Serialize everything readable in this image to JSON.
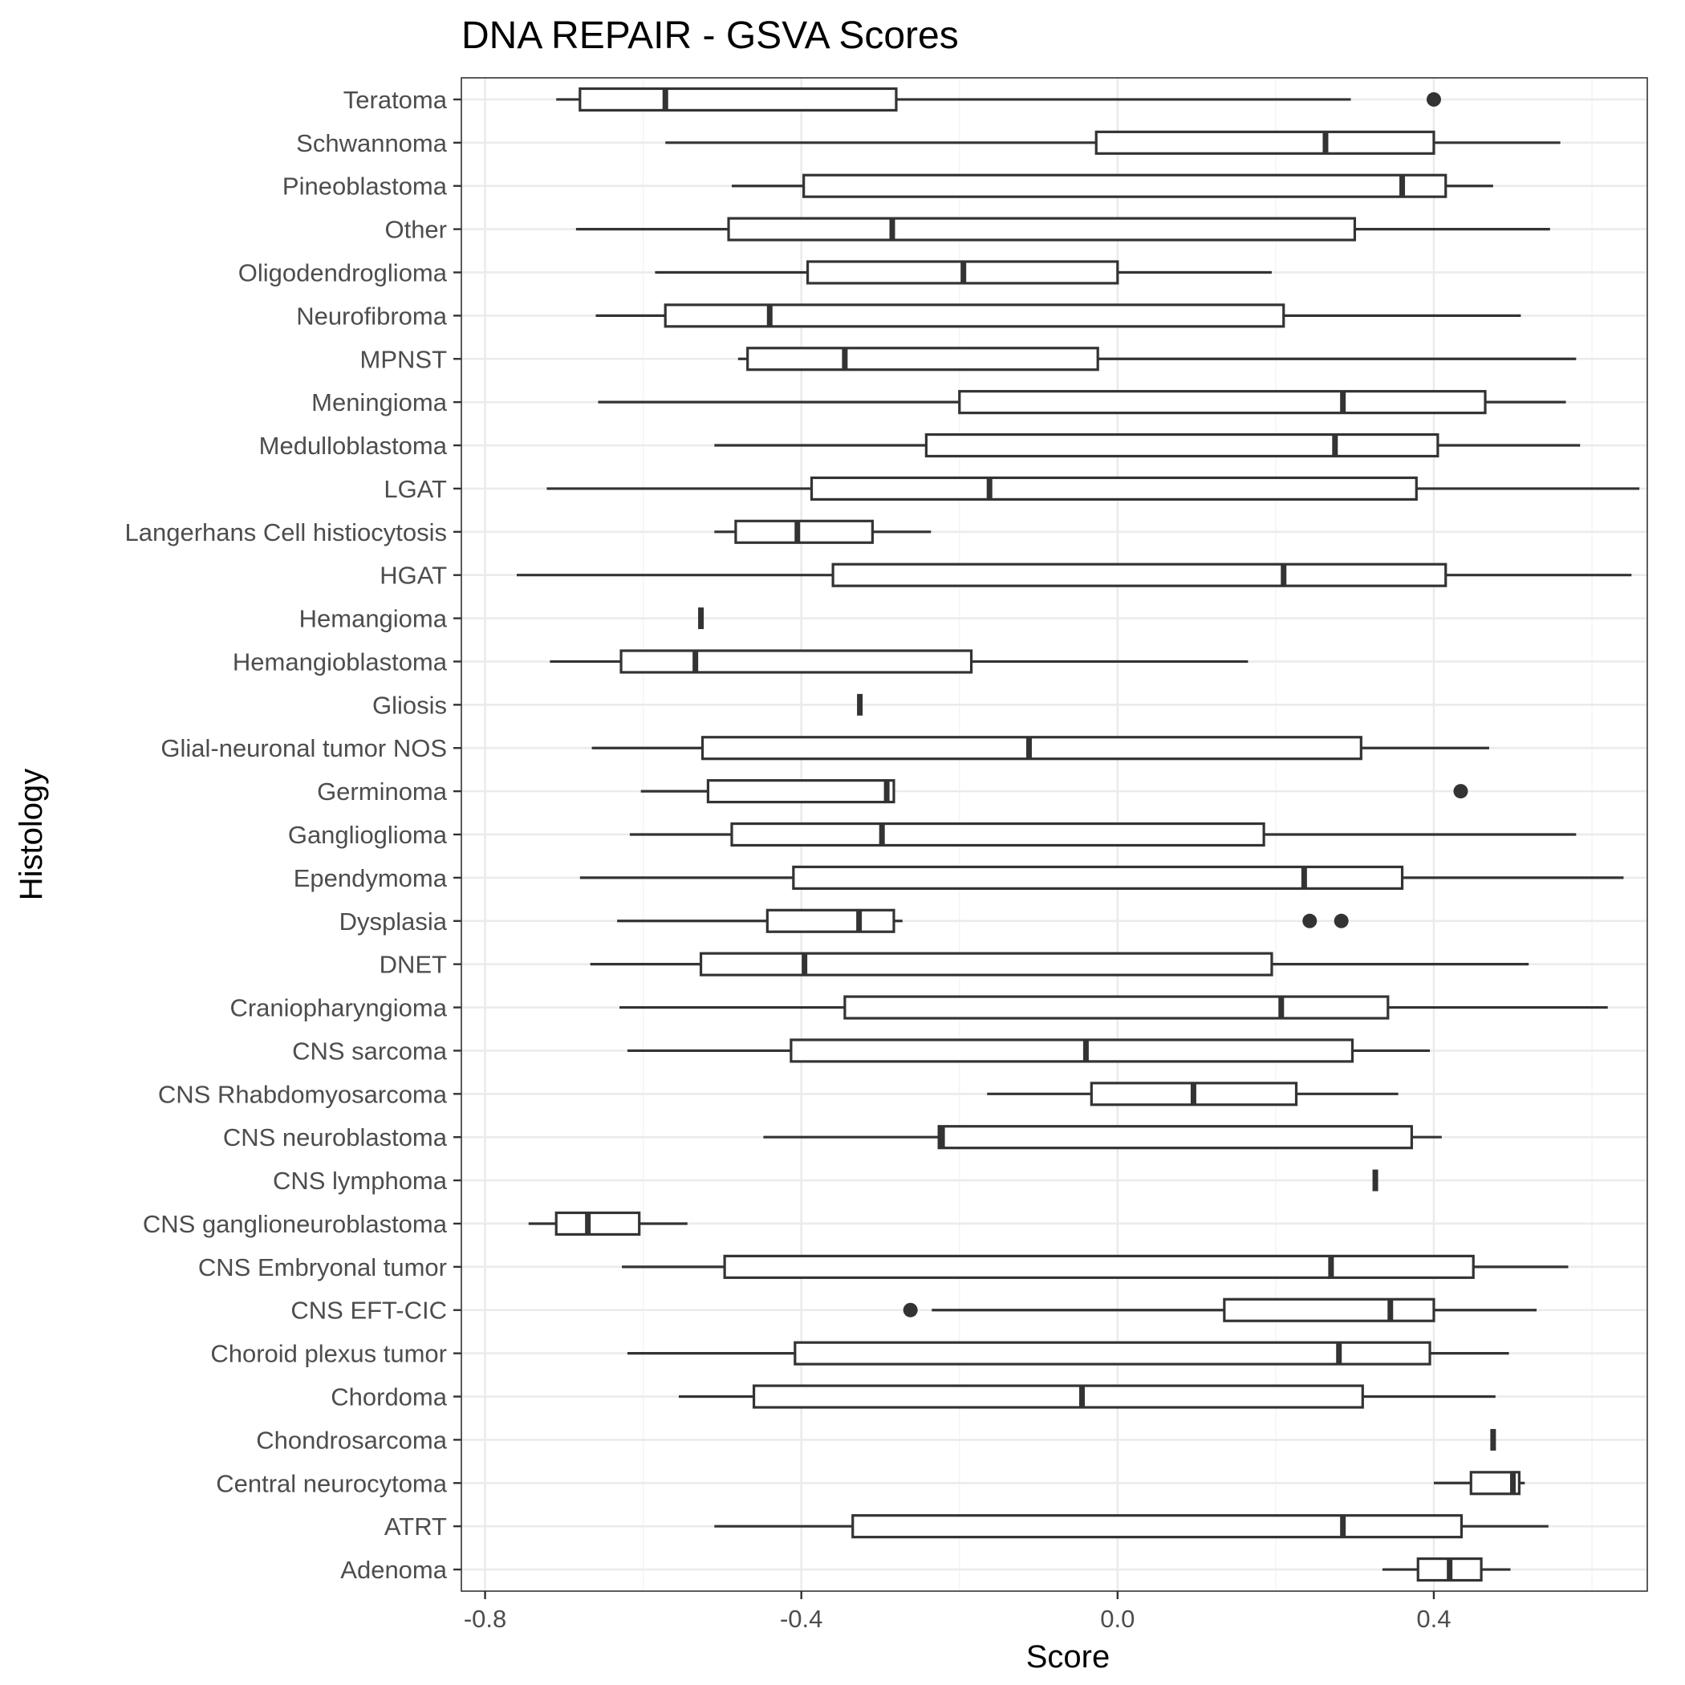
{
  "chart_data": {
    "type": "boxplot",
    "orientation": "horizontal",
    "title": "DNA REPAIR - GSVA Scores",
    "xlabel": "Score",
    "ylabel": "Histology",
    "xlim": [
      -0.83,
      0.67
    ],
    "xticks": [
      -0.8,
      -0.4,
      0.0,
      0.4
    ],
    "xtick_labels": [
      "-0.8",
      "-0.4",
      "0.0",
      "0.4"
    ],
    "grid": true,
    "legend": "none",
    "series": [
      {
        "name": "Teratoma",
        "min": -0.71,
        "q1": -0.68,
        "median": -0.572,
        "q3": -0.28,
        "max": 0.295,
        "outliers": [
          0.4
        ]
      },
      {
        "name": "Schwannoma",
        "min": -0.572,
        "q1": -0.027,
        "median": 0.263,
        "q3": 0.4,
        "max": 0.56,
        "outliers": []
      },
      {
        "name": "Pineoblastoma",
        "min": -0.488,
        "q1": -0.397,
        "median": 0.36,
        "q3": 0.415,
        "max": 0.475,
        "outliers": []
      },
      {
        "name": "Other",
        "min": -0.685,
        "q1": -0.492,
        "median": -0.285,
        "q3": 0.3,
        "max": 0.547,
        "outliers": []
      },
      {
        "name": "Oligodendroglioma",
        "min": -0.585,
        "q1": -0.392,
        "median": -0.195,
        "q3": 0.0,
        "max": 0.195,
        "outliers": []
      },
      {
        "name": "Neurofibroma",
        "min": -0.66,
        "q1": -0.572,
        "median": -0.44,
        "q3": 0.21,
        "max": 0.51,
        "outliers": []
      },
      {
        "name": "MPNST",
        "min": -0.48,
        "q1": -0.468,
        "median": -0.345,
        "q3": -0.025,
        "max": 0.58,
        "outliers": []
      },
      {
        "name": "Meningioma",
        "min": -0.657,
        "q1": -0.2,
        "median": 0.285,
        "q3": 0.465,
        "max": 0.567,
        "outliers": []
      },
      {
        "name": "Medulloblastoma",
        "min": -0.51,
        "q1": -0.242,
        "median": 0.275,
        "q3": 0.405,
        "max": 0.585,
        "outliers": []
      },
      {
        "name": "LGAT",
        "min": -0.722,
        "q1": -0.387,
        "median": -0.162,
        "q3": 0.378,
        "max": 0.66,
        "outliers": []
      },
      {
        "name": "Langerhans Cell histiocytosis",
        "min": -0.51,
        "q1": -0.483,
        "median": -0.405,
        "q3": -0.31,
        "max": -0.236,
        "outliers": []
      },
      {
        "name": "HGAT",
        "min": -0.76,
        "q1": -0.36,
        "median": 0.21,
        "q3": 0.415,
        "max": 0.65,
        "outliers": []
      },
      {
        "name": "Hemangioma",
        "min": -0.527,
        "q1": -0.527,
        "median": -0.527,
        "q3": -0.527,
        "max": -0.527,
        "outliers": []
      },
      {
        "name": "Hemangioblastoma",
        "min": -0.718,
        "q1": -0.628,
        "median": -0.534,
        "q3": -0.185,
        "max": 0.165,
        "outliers": []
      },
      {
        "name": "Gliosis",
        "min": -0.326,
        "q1": -0.326,
        "median": -0.326,
        "q3": -0.326,
        "max": -0.326,
        "outliers": []
      },
      {
        "name": "Glial-neuronal tumor NOS",
        "min": -0.665,
        "q1": -0.525,
        "median": -0.112,
        "q3": 0.308,
        "max": 0.47,
        "outliers": []
      },
      {
        "name": "Germinoma",
        "min": -0.603,
        "q1": -0.518,
        "median": -0.292,
        "q3": -0.283,
        "max": -0.283,
        "outliers": [
          0.434
        ]
      },
      {
        "name": "Ganglioglioma",
        "min": -0.617,
        "q1": -0.488,
        "median": -0.298,
        "q3": 0.185,
        "max": 0.58,
        "outliers": []
      },
      {
        "name": "Ependymoma",
        "min": -0.68,
        "q1": -0.41,
        "median": 0.236,
        "q3": 0.36,
        "max": 0.64,
        "outliers": []
      },
      {
        "name": "Dysplasia",
        "min": -0.633,
        "q1": -0.443,
        "median": -0.327,
        "q3": -0.283,
        "max": -0.272,
        "outliers": [
          0.243,
          0.283
        ]
      },
      {
        "name": "DNET",
        "min": -0.667,
        "q1": -0.527,
        "median": -0.396,
        "q3": 0.195,
        "max": 0.52,
        "outliers": []
      },
      {
        "name": "Craniopharyngioma",
        "min": -0.63,
        "q1": -0.345,
        "median": 0.207,
        "q3": 0.342,
        "max": 0.62,
        "outliers": []
      },
      {
        "name": "CNS sarcoma",
        "min": -0.62,
        "q1": -0.413,
        "median": -0.04,
        "q3": 0.297,
        "max": 0.395,
        "outliers": []
      },
      {
        "name": "CNS Rhabdomyosarcoma",
        "min": -0.165,
        "q1": -0.033,
        "median": 0.096,
        "q3": 0.226,
        "max": 0.355,
        "outliers": []
      },
      {
        "name": "CNS neuroblastoma",
        "min": -0.448,
        "q1": -0.226,
        "median": -0.222,
        "q3": 0.372,
        "max": 0.41,
        "outliers": []
      },
      {
        "name": "CNS lymphoma",
        "min": 0.326,
        "q1": 0.326,
        "median": 0.326,
        "q3": 0.326,
        "max": 0.326,
        "outliers": []
      },
      {
        "name": "CNS ganglioneuroblastoma",
        "min": -0.745,
        "q1": -0.71,
        "median": -0.67,
        "q3": -0.605,
        "max": -0.544,
        "outliers": []
      },
      {
        "name": "CNS Embryonal tumor",
        "min": -0.627,
        "q1": -0.497,
        "median": 0.27,
        "q3": 0.45,
        "max": 0.57,
        "outliers": []
      },
      {
        "name": "CNS EFT-CIC",
        "min": -0.235,
        "q1": 0.135,
        "median": 0.345,
        "q3": 0.4,
        "max": 0.53,
        "outliers": [
          -0.262
        ]
      },
      {
        "name": "Choroid plexus tumor",
        "min": -0.62,
        "q1": -0.408,
        "median": 0.28,
        "q3": 0.395,
        "max": 0.495,
        "outliers": []
      },
      {
        "name": "Chordoma",
        "min": -0.555,
        "q1": -0.46,
        "median": -0.045,
        "q3": 0.31,
        "max": 0.478,
        "outliers": []
      },
      {
        "name": "Chondrosarcoma",
        "min": 0.475,
        "q1": 0.475,
        "median": 0.475,
        "q3": 0.475,
        "max": 0.475,
        "outliers": []
      },
      {
        "name": "Central neurocytoma",
        "min": 0.4,
        "q1": 0.447,
        "median": 0.5,
        "q3": 0.508,
        "max": 0.515,
        "outliers": []
      },
      {
        "name": "ATRT",
        "min": -0.51,
        "q1": -0.335,
        "median": 0.285,
        "q3": 0.435,
        "max": 0.545,
        "outliers": []
      },
      {
        "name": "Adenoma",
        "min": 0.335,
        "q1": 0.38,
        "median": 0.42,
        "q3": 0.46,
        "max": 0.497,
        "outliers": []
      }
    ]
  }
}
